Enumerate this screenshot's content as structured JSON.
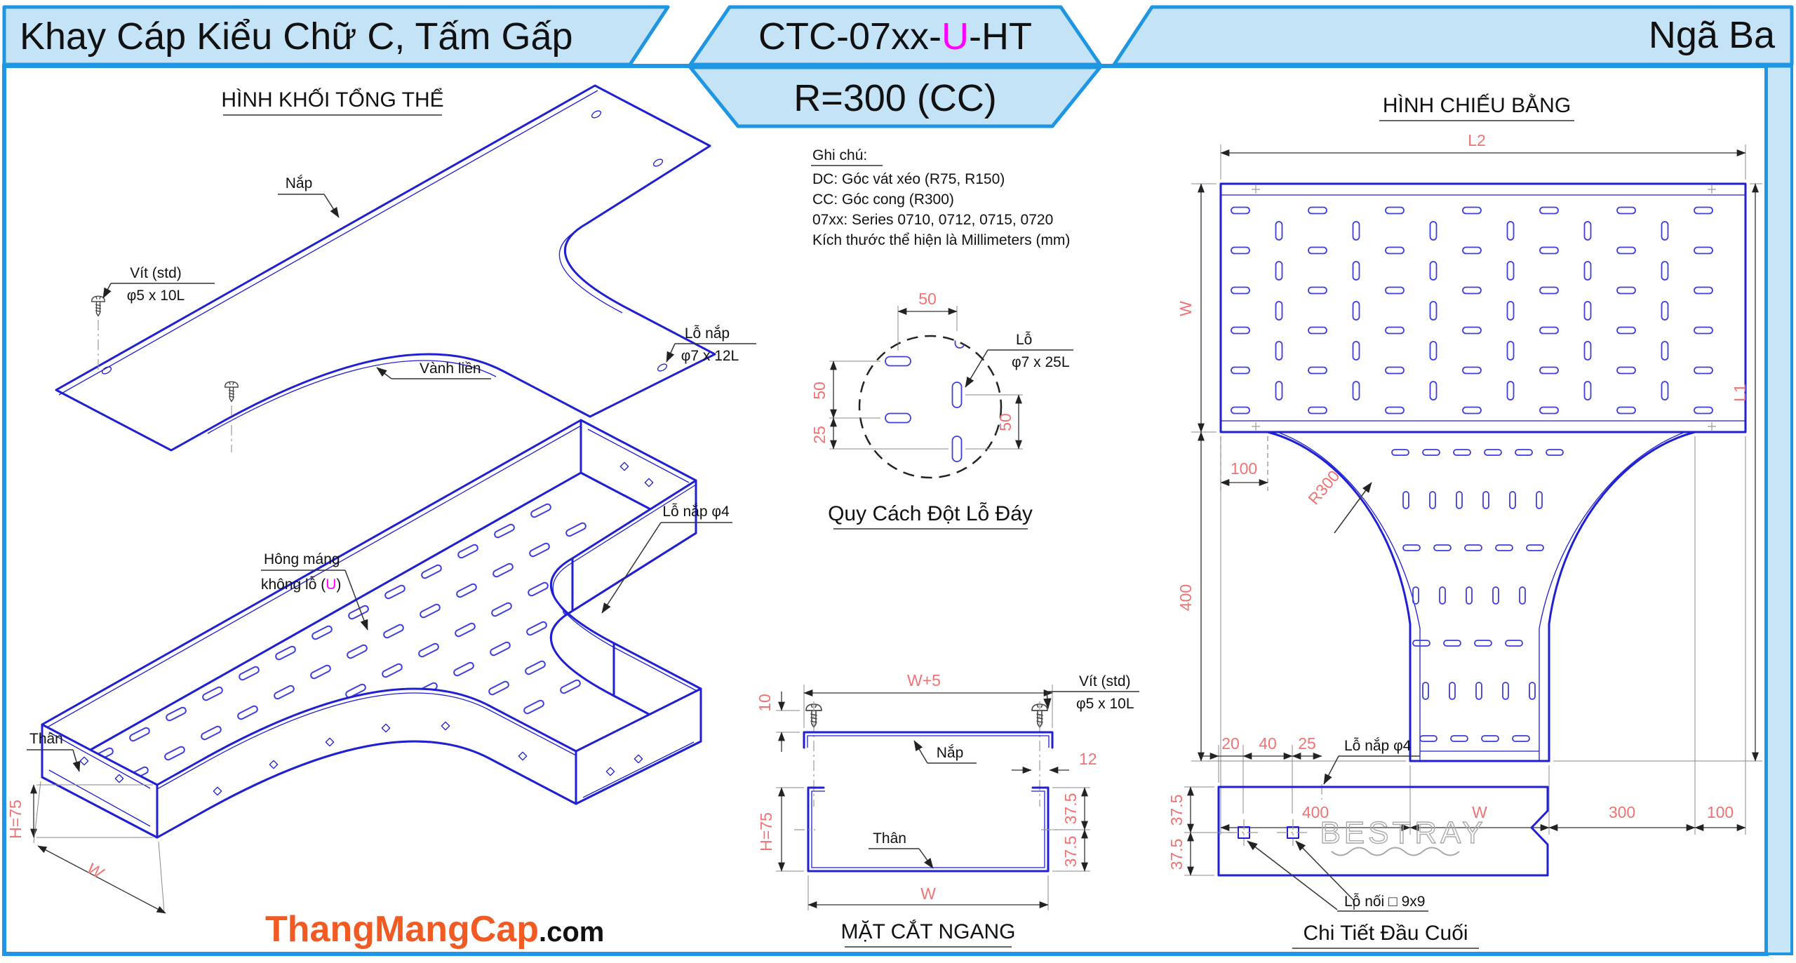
{
  "header": {
    "left_title": "Khay Cáp Kiểu Chữ C, Tấm Gấp",
    "code_pre": "CTC-07xx-",
    "code_mid": "U",
    "code_post": "-HT",
    "code_sub": "R=300 (CC)",
    "right_title": "Ngã Ba"
  },
  "notes": {
    "heading": "Ghi chú:",
    "line1": "DC: Góc vát xéo (R75, R150)",
    "line2": "CC: Góc cong (R300)",
    "line3": "07xx: Series 0710, 0712, 0715, 0720",
    "line4": "Kích thước thể hiện là Millimeters (mm)"
  },
  "iso": {
    "title": "HÌNH KHỐI TỔNG THỂ",
    "nap": "Nắp",
    "vit1": "Vít (std)",
    "vit2": "φ5 x 10L",
    "vanh_lien": "Vành liền",
    "lo_nap1": "Lỗ nắp",
    "lo_nap2": "φ7 x 12L",
    "lo_nap4": "Lỗ nắp φ4",
    "hong1": "Hông máng",
    "hong2a": "không lỗ (",
    "hong2b": "U",
    "hong2c": ")",
    "than": "Thân",
    "dim_h": "H=75",
    "dim_w": "W"
  },
  "punch": {
    "title": "Quy Cách Đột Lỗ Đáy",
    "lo": "Lỗ",
    "spec": "φ7 x 25L",
    "d_top": "50",
    "d_left1": "50",
    "d_left2": "25",
    "d_right": "50"
  },
  "plan": {
    "title": "HÌNH CHIẾU BẰNG",
    "l2": "L2",
    "w_left": "W",
    "d100": "100",
    "d400v": "400",
    "r300": "R300",
    "b400": "400",
    "bw": "W",
    "b300": "300",
    "b100": "100",
    "l1": "L1"
  },
  "section": {
    "title": "MẶT CẮT NGANG",
    "w5": "W+5",
    "d10": "10",
    "d12": "12",
    "h75": "H=75",
    "d375a": "37.5",
    "d375b": "37.5",
    "w": "W",
    "vit1": "Vít (std)",
    "vit2": "φ5 x 10L",
    "nap": "Nắp",
    "than": "Thân"
  },
  "end_detail": {
    "title": "Chi Tiết Đầu Cuối",
    "d20": "20",
    "d40": "40",
    "d25": "25",
    "d375a": "37.5",
    "d375b": "37.5",
    "lo_nap4": "Lỗ nắp φ4",
    "lo_noi": "Lỗ nối □ 9x9",
    "logo": "BESTRAY"
  },
  "footer": {
    "brand": "ThangMangCap",
    "tld": ".com"
  },
  "colors": {
    "line_blue": "#1f1fd4",
    "dim_red": "#f07373",
    "header_fill": "#c5e3f7",
    "header_stroke": "#1e96e1",
    "magenta": "#ff00ff",
    "brand_orange": "#f15a22"
  }
}
